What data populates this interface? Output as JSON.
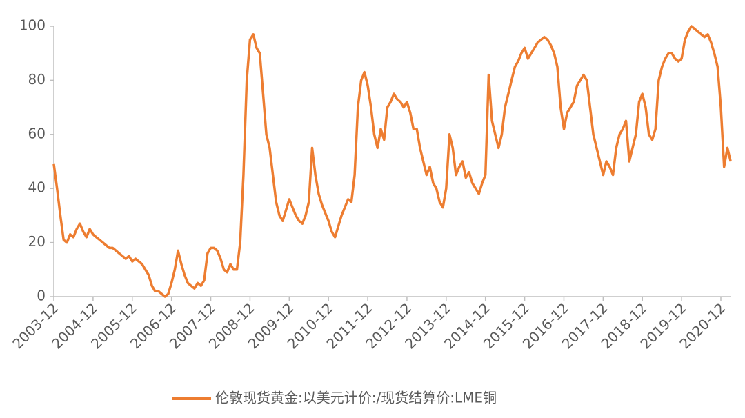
{
  "chart_data": {
    "type": "line",
    "x": [
      "2003-12",
      "2004-01",
      "2004-02",
      "2004-03",
      "2004-04",
      "2004-05",
      "2004-06",
      "2004-07",
      "2004-08",
      "2004-09",
      "2004-10",
      "2004-11",
      "2004-12",
      "2005-01",
      "2005-02",
      "2005-03",
      "2005-04",
      "2005-05",
      "2005-06",
      "2005-07",
      "2005-08",
      "2005-09",
      "2005-10",
      "2005-11",
      "2005-12",
      "2006-01",
      "2006-02",
      "2006-03",
      "2006-04",
      "2006-05",
      "2006-06",
      "2006-07",
      "2006-08",
      "2006-09",
      "2006-10",
      "2006-11",
      "2006-12",
      "2007-01",
      "2007-02",
      "2007-03",
      "2007-04",
      "2007-05",
      "2007-06",
      "2007-07",
      "2007-08",
      "2007-09",
      "2007-10",
      "2007-11",
      "2007-12",
      "2008-01",
      "2008-02",
      "2008-03",
      "2008-04",
      "2008-05",
      "2008-06",
      "2008-07",
      "2008-08",
      "2008-09",
      "2008-10",
      "2008-11",
      "2008-12",
      "2009-01",
      "2009-02",
      "2009-03",
      "2009-04",
      "2009-05",
      "2009-06",
      "2009-07",
      "2009-08",
      "2009-09",
      "2009-10",
      "2009-11",
      "2009-12",
      "2010-01",
      "2010-02",
      "2010-03",
      "2010-04",
      "2010-05",
      "2010-06",
      "2010-07",
      "2010-08",
      "2010-09",
      "2010-10",
      "2010-11",
      "2010-12",
      "2011-01",
      "2011-02",
      "2011-03",
      "2011-04",
      "2011-05",
      "2011-06",
      "2011-07",
      "2011-08",
      "2011-09",
      "2011-10",
      "2011-11",
      "2011-12",
      "2012-01",
      "2012-02",
      "2012-03",
      "2012-04",
      "2012-05",
      "2012-06",
      "2012-07",
      "2012-08",
      "2012-09",
      "2012-10",
      "2012-11",
      "2012-12",
      "2013-01",
      "2013-02",
      "2013-03",
      "2013-04",
      "2013-05",
      "2013-06",
      "2013-07",
      "2013-08",
      "2013-09",
      "2013-10",
      "2013-11",
      "2013-12",
      "2014-01",
      "2014-02",
      "2014-03",
      "2014-04",
      "2014-05",
      "2014-06",
      "2014-07",
      "2014-08",
      "2014-09",
      "2014-10",
      "2014-11",
      "2014-12",
      "2015-01",
      "2015-02",
      "2015-03",
      "2015-04",
      "2015-05",
      "2015-06",
      "2015-07",
      "2015-08",
      "2015-09",
      "2015-10",
      "2015-11",
      "2015-12",
      "2016-01",
      "2016-02",
      "2016-03",
      "2016-04",
      "2016-05",
      "2016-06",
      "2016-07",
      "2016-08",
      "2016-09",
      "2016-10",
      "2016-11",
      "2016-12",
      "2017-01",
      "2017-02",
      "2017-03",
      "2017-04",
      "2017-05",
      "2017-06",
      "2017-07",
      "2017-08",
      "2017-09",
      "2017-10",
      "2017-11",
      "2017-12",
      "2018-01",
      "2018-02",
      "2018-03",
      "2018-04",
      "2018-05",
      "2018-06",
      "2018-07",
      "2018-08",
      "2018-09",
      "2018-10",
      "2018-11",
      "2018-12",
      "2019-01",
      "2019-02",
      "2019-03",
      "2019-04",
      "2019-05",
      "2019-06",
      "2019-07",
      "2019-08",
      "2019-09",
      "2019-10",
      "2019-11",
      "2019-12",
      "2020-01",
      "2020-02",
      "2020-03",
      "2020-04",
      "2020-05",
      "2020-06",
      "2020-07",
      "2020-08",
      "2020-09",
      "2020-10",
      "2020-11",
      "2020-12",
      "2021-01",
      "2021-02",
      "2021-03"
    ],
    "series": [
      {
        "name": "伦敦现货黄金:以美元计价:/现货结算价:LME铜",
        "color": "#ed7d31",
        "values": [
          49,
          40,
          30,
          21,
          20,
          23,
          22,
          25,
          27,
          24,
          22,
          25,
          23,
          22,
          21,
          20,
          19,
          18,
          18,
          17,
          16,
          15,
          14,
          15,
          13,
          14,
          13,
          12,
          10,
          8,
          4,
          2,
          2,
          1,
          0,
          1,
          5,
          10,
          17,
          12,
          8,
          5,
          4,
          3,
          5,
          4,
          6,
          16,
          18,
          18,
          17,
          14,
          10,
          9,
          12,
          10,
          10,
          20,
          45,
          80,
          95,
          97,
          92,
          90,
          75,
          60,
          55,
          45,
          35,
          30,
          28,
          32,
          36,
          33,
          30,
          28,
          27,
          30,
          35,
          55,
          45,
          38,
          34,
          31,
          28,
          24,
          22,
          26,
          30,
          33,
          36,
          35,
          45,
          70,
          80,
          83,
          78,
          70,
          60,
          55,
          62,
          58,
          70,
          72,
          75,
          73,
          72,
          70,
          72,
          68,
          62,
          62,
          55,
          50,
          45,
          48,
          42,
          40,
          35,
          33,
          40,
          60,
          55,
          45,
          48,
          50,
          44,
          46,
          42,
          40,
          38,
          42,
          45,
          82,
          65,
          60,
          55,
          60,
          70,
          75,
          80,
          85,
          87,
          90,
          92,
          88,
          90,
          92,
          94,
          95,
          96,
          95,
          93,
          90,
          85,
          70,
          62,
          68,
          70,
          72,
          78,
          80,
          82,
          80,
          70,
          60,
          55,
          50,
          45,
          50,
          48,
          45,
          55,
          60,
          62,
          65,
          50,
          55,
          60,
          72,
          75,
          70,
          60,
          58,
          62,
          80,
          85,
          88,
          90,
          90,
          88,
          87,
          88,
          95,
          98,
          100,
          99,
          98,
          97,
          96,
          97,
          94,
          90,
          85,
          70,
          48,
          55,
          50
        ]
      }
    ],
    "xticks": [
      "2003-12",
      "2004-12",
      "2005-12",
      "2006-12",
      "2007-12",
      "2008-12",
      "2009-12",
      "2010-12",
      "2011-12",
      "2012-12",
      "2013-12",
      "2014-12",
      "2015-12",
      "2016-12",
      "2017-12",
      "2018-12",
      "2019-12",
      "2020-12"
    ],
    "ylim": [
      0,
      100
    ],
    "yticks": [
      0,
      20,
      40,
      60,
      80,
      100
    ],
    "legend": "bottom"
  }
}
